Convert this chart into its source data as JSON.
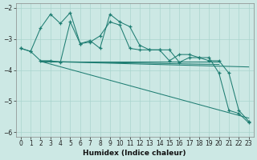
{
  "bg_color": "#cce8e4",
  "grid_color": "#aad4ce",
  "line_color": "#1e7d72",
  "xlabel": "Humidex (Indice chaleur)",
  "xlim": [
    -0.5,
    23.5
  ],
  "ylim": [
    -6.15,
    -1.85
  ],
  "yticks": [
    -6,
    -5,
    -4,
    -3,
    -2
  ],
  "xticks": [
    0,
    1,
    2,
    3,
    4,
    5,
    6,
    7,
    8,
    9,
    10,
    11,
    12,
    13,
    14,
    15,
    16,
    17,
    18,
    19,
    20,
    21,
    22,
    23
  ],
  "jagged1_x": [
    0,
    1,
    2,
    3,
    4,
    5,
    6,
    7,
    8,
    9,
    10,
    11,
    12,
    13,
    14,
    15,
    16,
    17,
    18,
    19,
    20,
    21,
    22,
    23
  ],
  "jagged1_y": [
    -3.3,
    -3.4,
    -2.65,
    -2.2,
    -2.5,
    -2.15,
    -3.15,
    -3.1,
    -2.9,
    -2.45,
    -2.55,
    -3.3,
    -3.35,
    -3.35,
    -3.35,
    -3.7,
    -3.5,
    -3.5,
    -3.6,
    -3.6,
    -4.1,
    -5.3,
    -5.4,
    -5.7
  ],
  "jagged2_x": [
    0,
    1,
    2,
    3,
    4,
    5,
    6,
    7,
    8,
    9,
    10,
    11,
    12,
    13,
    14,
    15,
    16,
    17,
    18,
    19,
    20,
    21,
    22,
    23
  ],
  "jagged2_y": [
    -3.3,
    -3.4,
    -3.7,
    -3.7,
    -3.75,
    -2.45,
    -3.15,
    -3.05,
    -3.3,
    -2.2,
    -2.45,
    -2.6,
    -3.2,
    -3.35,
    -3.35,
    -3.35,
    -3.75,
    -3.6,
    -3.6,
    -3.7,
    -3.7,
    -4.1,
    -5.3,
    -5.65
  ],
  "straight_lines": [
    {
      "x": [
        2,
        20
      ],
      "y": [
        -3.72,
        -3.72
      ]
    },
    {
      "x": [
        2,
        20
      ],
      "y": [
        -3.72,
        -3.82
      ]
    },
    {
      "x": [
        2,
        23
      ],
      "y": [
        -3.72,
        -3.9
      ]
    },
    {
      "x": [
        2,
        23
      ],
      "y": [
        -3.72,
        -5.55
      ]
    }
  ]
}
